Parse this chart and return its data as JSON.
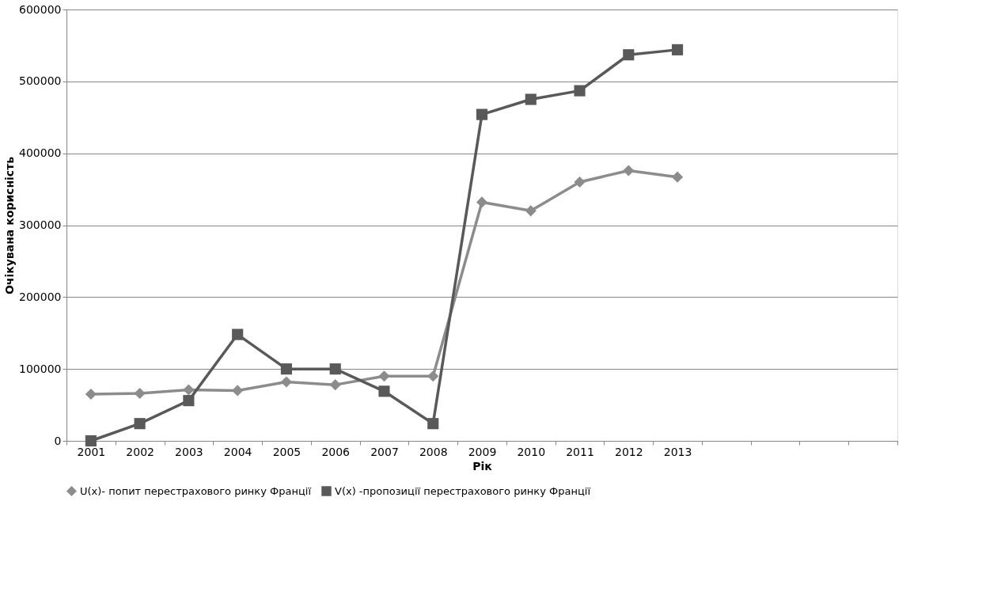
{
  "chart_data": {
    "type": "line",
    "xlabel": "Рік",
    "ylabel": "Очікувана корисність",
    "categories": [
      "2001",
      "2002",
      "2003",
      "2004",
      "2005",
      "2006",
      "2007",
      "2008",
      "2009",
      "2010",
      "2011",
      "2012",
      "2013",
      null,
      null,
      null,
      null
    ],
    "series": [
      {
        "name": "U(x)- попит перестрахового ринку Франції",
        "color": "#8c8c8c",
        "marker": "diamond",
        "values": [
          65000,
          66000,
          71000,
          70000,
          82000,
          78000,
          90000,
          90000,
          332000,
          320000,
          360000,
          376000,
          367000,
          null,
          null,
          null,
          null
        ]
      },
      {
        "name": "V(x) -пропозиції перестрахового ринку Франції",
        "color": "#595959",
        "marker": "square",
        "values": [
          0,
          24000,
          56000,
          148000,
          100000,
          100000,
          69000,
          24000,
          454000,
          475000,
          487000,
          537000,
          544000,
          null,
          null,
          null,
          null
        ]
      }
    ],
    "ylim": [
      0,
      600000
    ],
    "yticks": [
      0,
      100000,
      200000,
      300000,
      400000,
      500000,
      600000
    ],
    "grid": "y",
    "legend": "bottom",
    "line_style": "solid"
  }
}
